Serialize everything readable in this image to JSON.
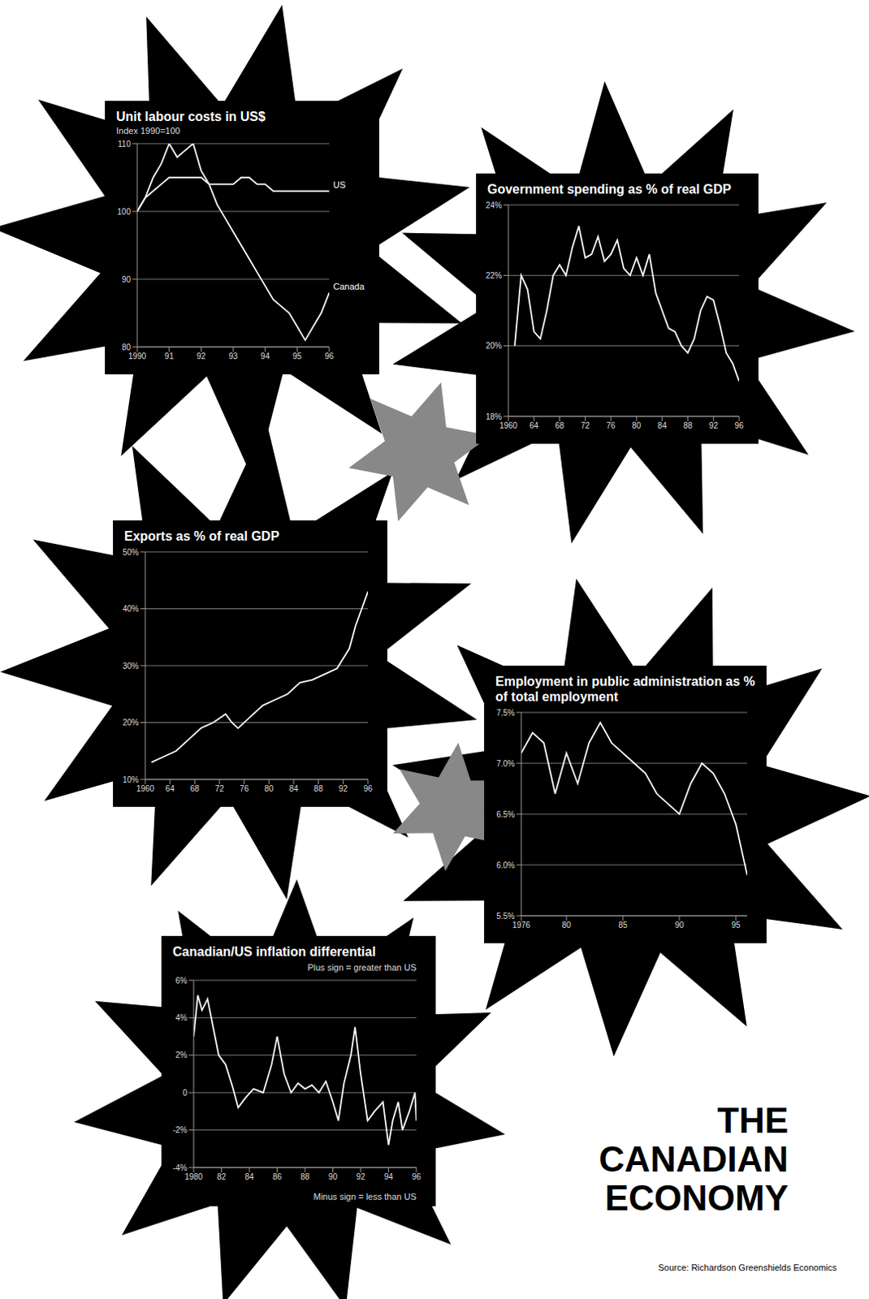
{
  "title": "THE CANADIAN ECONOMY",
  "source": "Source: Richardson Greenshields Economics",
  "chart_data": [
    {
      "type": "line",
      "title": "Unit labour costs in US$",
      "subtitle": "Index 1990=100",
      "grid": true,
      "x": [
        1990,
        1990.25,
        1990.5,
        1990.75,
        1991,
        1991.25,
        1991.5,
        1991.75,
        1992,
        1992.25,
        1992.5,
        1992.75,
        1993,
        1993.25,
        1993.5,
        1993.75,
        1994,
        1994.25,
        1994.5,
        1994.75,
        1995,
        1995.25,
        1995.5,
        1995.75,
        1996
      ],
      "xlim": [
        1990,
        1996
      ],
      "xticks": [
        1990,
        {
          "value": 1991,
          "label": "91"
        },
        {
          "value": 1992,
          "label": "92"
        },
        {
          "value": 1993,
          "label": "93"
        },
        {
          "value": 1994,
          "label": "94"
        },
        {
          "value": 1995,
          "label": "95"
        },
        {
          "value": 1996,
          "label": "96"
        }
      ],
      "ylim": [
        80,
        110
      ],
      "yticks": [
        80,
        90,
        100,
        110
      ],
      "series": [
        {
          "name": "US",
          "color": "#ffffff",
          "values": [
            100,
            102,
            103,
            104,
            105,
            105,
            105,
            105,
            105,
            104,
            104,
            104,
            104,
            105,
            105,
            104,
            104,
            103,
            103,
            103,
            103,
            103,
            103,
            103,
            103
          ]
        },
        {
          "name": "Canada",
          "color": "#ffffff",
          "values": [
            100,
            102,
            105,
            107,
            110,
            108,
            109,
            110,
            106,
            104,
            101,
            99,
            97,
            95,
            93,
            91,
            89,
            87,
            86,
            85,
            83,
            81,
            83,
            85,
            88
          ]
        }
      ]
    },
    {
      "type": "line",
      "title": "Government spending as % of real GDP",
      "grid": true,
      "color": "#ffffff",
      "x": [
        1961,
        1962,
        1963,
        1964,
        1965,
        1966,
        1967,
        1968,
        1969,
        1970,
        1971,
        1972,
        1973,
        1974,
        1975,
        1976,
        1977,
        1978,
        1979,
        1980,
        1981,
        1982,
        1983,
        1984,
        1985,
        1986,
        1987,
        1988,
        1989,
        1990,
        1991,
        1992,
        1993,
        1994,
        1995,
        1996
      ],
      "values": [
        20.0,
        22.0,
        21.6,
        20.4,
        20.2,
        21.0,
        22.0,
        22.3,
        22.0,
        22.8,
        23.4,
        22.5,
        22.6,
        23.1,
        22.4,
        22.6,
        23.0,
        22.2,
        22.0,
        22.5,
        22.0,
        22.6,
        21.5,
        21.0,
        20.5,
        20.4,
        20.0,
        19.8,
        20.2,
        21.0,
        21.4,
        21.3,
        20.6,
        19.8,
        19.5,
        19.0
      ],
      "xlim": [
        1960,
        1996
      ],
      "xticks": [
        1960,
        {
          "value": 1964,
          "label": "64"
        },
        {
          "value": 1968,
          "label": "68"
        },
        {
          "value": 1972,
          "label": "72"
        },
        {
          "value": 1976,
          "label": "76"
        },
        {
          "value": 1980,
          "label": "80"
        },
        {
          "value": 1984,
          "label": "84"
        },
        {
          "value": 1988,
          "label": "88"
        },
        {
          "value": 1992,
          "label": "92"
        },
        {
          "value": 1996,
          "label": "96"
        }
      ],
      "ylim": [
        18,
        24
      ],
      "yticks": [
        {
          "value": 18,
          "label": "18%"
        },
        {
          "value": 20,
          "label": "20%"
        },
        {
          "value": 22,
          "label": "22%"
        },
        {
          "value": 24,
          "label": "24%"
        }
      ]
    },
    {
      "type": "line",
      "title": "Exports as % of real GDP",
      "grid": true,
      "color": "#ffffff",
      "x": [
        1961,
        1963,
        1965,
        1967,
        1969,
        1971,
        1973,
        1974,
        1975,
        1977,
        1979,
        1981,
        1983,
        1985,
        1987,
        1989,
        1991,
        1993,
        1994,
        1995,
        1996
      ],
      "values": [
        13,
        14,
        15,
        17,
        19,
        20,
        21.5,
        20,
        19,
        21,
        23,
        24,
        25,
        27,
        27.5,
        28.5,
        29.5,
        33,
        37,
        40,
        43
      ],
      "xlim": [
        1960,
        1996
      ],
      "xticks": [
        1960,
        {
          "value": 1964,
          "label": "64"
        },
        {
          "value": 1968,
          "label": "68"
        },
        {
          "value": 1972,
          "label": "72"
        },
        {
          "value": 1976,
          "label": "76"
        },
        {
          "value": 1980,
          "label": "80"
        },
        {
          "value": 1984,
          "label": "84"
        },
        {
          "value": 1988,
          "label": "88"
        },
        {
          "value": 1992,
          "label": "92"
        },
        {
          "value": 1996,
          "label": "96"
        }
      ],
      "ylim": [
        10,
        50
      ],
      "yticks": [
        {
          "value": 10,
          "label": "10%"
        },
        {
          "value": 20,
          "label": "20%"
        },
        {
          "value": 30,
          "label": "30%"
        },
        {
          "value": 40,
          "label": "40%"
        },
        {
          "value": 50,
          "label": "50%"
        }
      ]
    },
    {
      "type": "line",
      "title": "Employment in public administration as % of total employment",
      "grid": true,
      "color": "#ffffff",
      "x": [
        1976,
        1977,
        1978,
        1979,
        1980,
        1981,
        1982,
        1983,
        1984,
        1985,
        1986,
        1987,
        1988,
        1989,
        1990,
        1991,
        1992,
        1993,
        1994,
        1995,
        1996
      ],
      "values": [
        7.1,
        7.3,
        7.2,
        6.7,
        7.1,
        6.8,
        7.2,
        7.4,
        7.2,
        7.1,
        7.0,
        6.9,
        6.7,
        6.6,
        6.5,
        6.8,
        7.0,
        6.9,
        6.7,
        6.4,
        5.9
      ],
      "xlim": [
        1976,
        1996
      ],
      "xticks": [
        1976,
        {
          "value": 1980,
          "label": "80"
        },
        {
          "value": 1985,
          "label": "85"
        },
        {
          "value": 1990,
          "label": "90"
        },
        {
          "value": 1995,
          "label": "95"
        }
      ],
      "ylim": [
        5.5,
        7.5
      ],
      "yticks": [
        {
          "value": 5.5,
          "label": "5.5%"
        },
        {
          "value": 6,
          "label": "6.0%"
        },
        {
          "value": 6.5,
          "label": "6.5%"
        },
        {
          "value": 7,
          "label": "7.0%"
        },
        {
          "value": 7.5,
          "label": "7.5%"
        }
      ]
    },
    {
      "type": "line",
      "title": "Canadian/US inflation differential",
      "annotations": [
        "Plus sign = greater than US",
        "Minus sign = less than US"
      ],
      "grid": true,
      "color": "#ffffff",
      "x": [
        1980,
        1980.3,
        1980.6,
        1981,
        1981.4,
        1981.8,
        1982.3,
        1982.8,
        1983.2,
        1983.7,
        1984.3,
        1985,
        1985.6,
        1986,
        1986.5,
        1987,
        1987.5,
        1988,
        1988.5,
        1989,
        1989.5,
        1990,
        1990.4,
        1990.8,
        1991.3,
        1991.6,
        1992,
        1992.5,
        1993,
        1993.6,
        1994,
        1994.3,
        1994.7,
        1995,
        1995.5,
        1995.9,
        1996
      ],
      "values": [
        3.0,
        5.2,
        4.4,
        5.0,
        3.5,
        2.0,
        1.5,
        0.3,
        -0.8,
        -0.3,
        0.2,
        0.0,
        1.5,
        3.0,
        1.0,
        0.0,
        0.5,
        0.2,
        0.4,
        0.0,
        0.6,
        -0.5,
        -1.5,
        0.5,
        2.0,
        3.5,
        1.0,
        -1.5,
        -1.0,
        -0.5,
        -2.8,
        -1.5,
        -0.5,
        -2.0,
        -1.0,
        0.0,
        -1.5
      ],
      "xlim": [
        1980,
        1996
      ],
      "xticks": [
        1980,
        {
          "value": 1982,
          "label": "82"
        },
        {
          "value": 1984,
          "label": "84"
        },
        {
          "value": 1986,
          "label": "86"
        },
        {
          "value": 1988,
          "label": "88"
        },
        {
          "value": 1990,
          "label": "90"
        },
        {
          "value": 1992,
          "label": "92"
        },
        {
          "value": 1994,
          "label": "94"
        },
        {
          "value": 1996,
          "label": "96"
        }
      ],
      "ylim": [
        -4,
        6
      ],
      "yticks": [
        {
          "value": -4,
          "label": "-4%"
        },
        {
          "value": -2,
          "label": "-2%"
        },
        0,
        {
          "value": 2,
          "label": "2%"
        },
        {
          "value": 4,
          "label": "4%"
        },
        {
          "value": 6,
          "label": "6%"
        }
      ]
    }
  ]
}
